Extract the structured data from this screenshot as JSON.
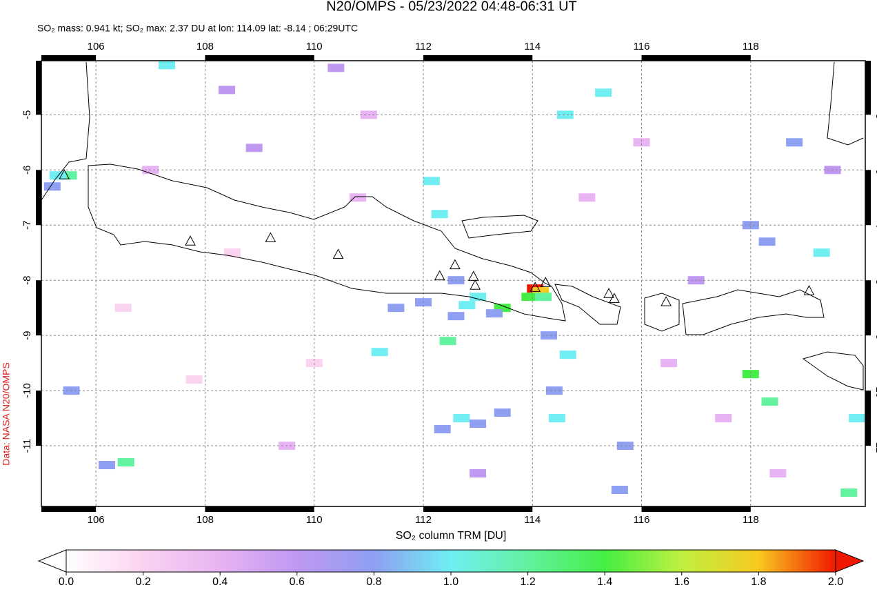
{
  "chart_data": {
    "type": "map",
    "title": "N20/OMPS - 05/23/2022 04:48-06:31 UT",
    "subtitle": "SO₂ mass: 0.941 kt; SO₂ max: 2.37 DU at lon: 114.09 lat: -8.14 ; 06:29UTC",
    "credit": "Data: NASA N20/OMPS",
    "xlim": [
      105,
      120.1
    ],
    "ylim": [
      -12.1,
      -4.02
    ],
    "xticks": [
      106,
      108,
      110,
      112,
      114,
      116,
      118
    ],
    "yticks": [
      -5,
      -6,
      -7,
      -8,
      -9,
      -10,
      -11
    ],
    "grid": true,
    "colorbar": {
      "label": "SO₂ column TRM [DU]",
      "lim": [
        0,
        2
      ],
      "ticks": [
        {
          "value": 0,
          "label": "0.0"
        },
        0.2,
        0.4,
        0.6,
        0.8,
        {
          "value": 1,
          "label": "1.0"
        },
        1.2,
        1.4,
        1.6,
        1.8,
        {
          "value": 2,
          "label": "2.0"
        }
      ],
      "colors": [
        "#ffffff",
        "#f9d3f0",
        "#e7b3f2",
        "#bf98f2",
        "#8f9ff2",
        "#70eef2",
        "#62f2a0",
        "#45ee45",
        "#bff040",
        "#f8c820",
        "#f01800"
      ]
    },
    "pixels": {
      "lon": [
        114.05,
        114.15,
        113.95,
        114.2,
        113.45,
        118.0,
        118.35,
        105.5,
        105.3,
        106.55,
        115.3,
        114.6,
        112.15,
        112.3,
        112.6,
        113.0,
        112.8,
        111.5,
        112.0,
        112.6,
        113.3,
        114.3,
        114.65,
        111.2,
        112.45,
        114.4,
        112.35,
        112.7,
        113.0,
        113.45,
        114.45,
        115.7,
        115.6,
        119.8,
        119.95,
        119.3,
        118.3,
        118.0,
        119.5,
        118.8,
        107.3,
        108.4,
        110.4,
        108.9,
        106.2,
        105.55,
        105.2,
        107.0,
        108.5,
        110.0,
        116.5,
        117.5,
        115.0,
        116.0,
        109.5,
        111.0,
        117.0,
        106.5,
        113.0,
        118.5,
        110.8,
        107.8
      ],
      "lat": [
        -8.15,
        -8.2,
        -8.3,
        -8.3,
        -8.5,
        -9.7,
        -10.2,
        -6.1,
        -6.1,
        -11.3,
        -4.6,
        -5.0,
        -6.2,
        -6.8,
        -8.0,
        -8.3,
        -8.45,
        -8.5,
        -8.4,
        -8.65,
        -8.6,
        -9.0,
        -9.35,
        -9.3,
        -9.1,
        -10.0,
        -10.7,
        -10.5,
        -10.6,
        -10.4,
        -10.5,
        -11.0,
        -11.8,
        -11.85,
        -10.5,
        -7.5,
        -7.3,
        -7.0,
        -6.0,
        -5.5,
        -4.1,
        -4.55,
        -4.15,
        -5.6,
        -11.35,
        -10.0,
        -6.3,
        -6.0,
        -7.5,
        -9.5,
        -9.5,
        -10.5,
        -6.5,
        -5.5,
        -11.0,
        -5.0,
        -8.0,
        -8.5,
        -11.5,
        -11.5,
        -6.5,
        -9.8
      ],
      "values": [
        2.37,
        1.8,
        1.3,
        1.2,
        1.3,
        1.35,
        1.1,
        1.2,
        0.9,
        1.25,
        1.05,
        1.0,
        1.0,
        1.0,
        0.85,
        0.95,
        0.9,
        0.75,
        0.8,
        0.7,
        0.75,
        0.7,
        0.9,
        1.0,
        1.1,
        0.8,
        0.75,
        0.9,
        0.75,
        0.7,
        0.9,
        0.75,
        0.7,
        1.15,
        1.05,
        0.9,
        0.85,
        0.7,
        0.6,
        0.7,
        0.9,
        0.6,
        0.6,
        0.6,
        0.85,
        0.85,
        0.8,
        0.3,
        0.25,
        0.2,
        0.35,
        0.4,
        0.45,
        0.3,
        0.3,
        0.35,
        0.5,
        0.25,
        0.5,
        0.4,
        0.3,
        0.2
      ]
    },
    "volcanoes": {
      "lon": [
        105.42,
        107.73,
        109.2,
        110.44,
        112.3,
        112.58,
        112.92,
        112.95,
        114.05,
        114.24,
        115.4,
        115.5,
        116.45,
        119.07
      ],
      "lat": [
        -6.1,
        -7.3,
        -7.24,
        -7.54,
        -7.93,
        -7.73,
        -7.94,
        -8.1,
        -8.14,
        -8.05,
        -8.25,
        -8.34,
        -8.4,
        -8.2
      ]
    }
  }
}
